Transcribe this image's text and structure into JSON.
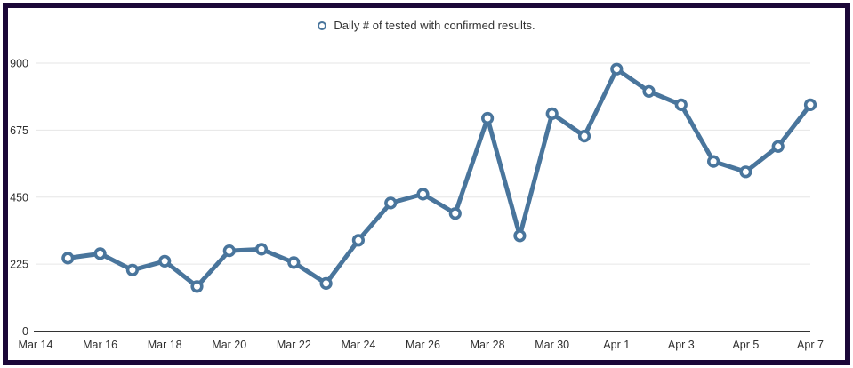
{
  "frame": {
    "border_color": "#1b0738",
    "background": "#ffffff"
  },
  "chart_data": {
    "type": "line",
    "title": "",
    "legend_position": "top-center",
    "grid": "horizontal",
    "ylim": [
      0,
      900
    ],
    "y_ticks": [
      0,
      225,
      450,
      675,
      900
    ],
    "y_tick_labels": [
      "0",
      "225",
      "450",
      "675",
      "900"
    ],
    "x_tick_labels": [
      "Mar 14",
      "Mar 16",
      "Mar 18",
      "Mar 20",
      "Mar 22",
      "Mar 24",
      "Mar 26",
      "Mar 28",
      "Mar 30",
      "Apr 1",
      "Apr 3",
      "Apr 5",
      "Apr 7"
    ],
    "x_axis_span_days": 24,
    "first_point_day_offset": 1,
    "categories": [
      "Mar 15",
      "Mar 16",
      "Mar 17",
      "Mar 18",
      "Mar 19",
      "Mar 20",
      "Mar 21",
      "Mar 22",
      "Mar 23",
      "Mar 24",
      "Mar 25",
      "Mar 26",
      "Mar 27",
      "Mar 28",
      "Mar 29",
      "Mar 30",
      "Mar 31",
      "Apr 1",
      "Apr 2",
      "Apr 3",
      "Apr 4",
      "Apr 5",
      "Apr 6",
      "Apr 7"
    ],
    "series": [
      {
        "name": "Daily # of tested with confirmed results.",
        "values": [
          245,
          260,
          205,
          235,
          150,
          270,
          275,
          230,
          160,
          305,
          430,
          460,
          395,
          715,
          320,
          730,
          655,
          880,
          805,
          760,
          570,
          535,
          620,
          760
        ]
      }
    ],
    "colors": {
      "line": "#49759c",
      "marker_fill": "#ffffff",
      "grid": "#e6e6e6",
      "axis_line": "#333333",
      "label_text": "#2e2e2e",
      "legend_text": "#333333"
    }
  }
}
